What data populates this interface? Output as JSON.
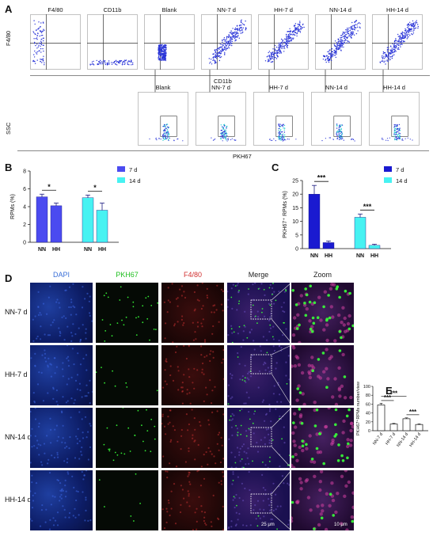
{
  "panels": {
    "A": "A",
    "B": "B",
    "C": "C",
    "D": "D",
    "E": "E"
  },
  "panelA": {
    "row1_titles": [
      "F4/80",
      "CD11b",
      "Blank",
      "NN-7 d",
      "HH-7 d",
      "NN-14 d",
      "HH-14 d"
    ],
    "row1_ylabel": "F4/80",
    "row1_xlabel": "CD11b",
    "row2_titles": [
      "Blank",
      "NN-7 d",
      "HH-7 d",
      "NN-14 d",
      "HH-14 d"
    ],
    "row2_ylabel": "SSC",
    "row2_xlabel": "PKH67"
  },
  "panelD": {
    "col_titles": [
      "DAPI",
      "PKH67",
      "F4/80",
      "Merge",
      "Zoom"
    ],
    "col_colors": [
      "#3a6fd8",
      "#1fbf1f",
      "#d23030",
      "#222222",
      "#222222"
    ],
    "row_titles": [
      "NN-7 d",
      "HH-7 d",
      "NN-14 d",
      "HH-14 d"
    ],
    "scale1": "25 μm",
    "scale2": "10 μm"
  },
  "chart_data": [
    {
      "id": "B",
      "type": "bar",
      "ylabel": "RPMs (%)",
      "ylim": [
        0,
        8
      ],
      "yticks": [
        "0",
        "2",
        "4",
        "6",
        "8"
      ],
      "groups": [
        {
          "name": "7 d",
          "color": "#4b4bf0",
          "categories": [
            "NN",
            "HH"
          ],
          "values": [
            5.1,
            4.1
          ],
          "errors": [
            0.3,
            0.3
          ]
        },
        {
          "name": "14 d",
          "color": "#47f2f2",
          "categories": [
            "NN",
            "HH"
          ],
          "values": [
            5.0,
            3.6
          ],
          "errors": [
            0.3,
            0.8
          ]
        }
      ],
      "significance": [
        "*",
        "*"
      ],
      "legend": [
        "7 d",
        "14 d"
      ]
    },
    {
      "id": "C",
      "type": "bar",
      "ylabel": "PKH67⁺ RPMs (%)",
      "ylim": [
        0,
        25
      ],
      "yticks": [
        "0",
        "5",
        "10",
        "15",
        "20",
        "25"
      ],
      "groups": [
        {
          "name": "7 d",
          "color": "#1a1ad0",
          "categories": [
            "NN",
            "HH"
          ],
          "values": [
            20,
            2.2
          ],
          "errors": [
            3.2,
            0.6
          ]
        },
        {
          "name": "14 d",
          "color": "#47f2f2",
          "categories": [
            "NN",
            "HH"
          ],
          "values": [
            11.5,
            1.2
          ],
          "errors": [
            1.2,
            0.4
          ]
        }
      ],
      "significance": [
        "***",
        "***"
      ],
      "legend": [
        "7 d",
        "14 d"
      ]
    },
    {
      "id": "E",
      "type": "bar",
      "ylabel": "PKH67⁺RPMs number/view",
      "ylim": [
        0,
        100
      ],
      "yticks": [
        "0",
        "20",
        "40",
        "60",
        "80",
        "100"
      ],
      "categories": [
        "NN-7 d",
        "HH-7 d",
        "NN-14 d",
        "HH-14 d"
      ],
      "values": [
        58,
        15,
        27,
        14
      ],
      "errors": [
        4,
        1.5,
        2,
        1.5
      ],
      "significance": [
        "***",
        "***",
        "***"
      ]
    }
  ]
}
